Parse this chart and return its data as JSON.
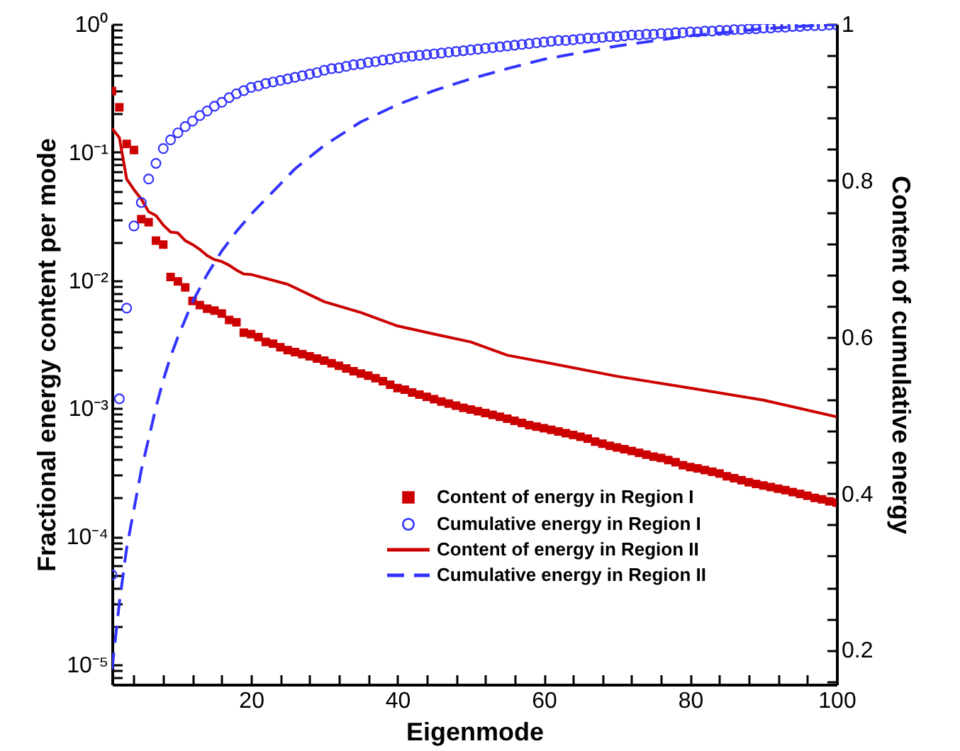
{
  "chart_data": {
    "type": "line",
    "xlabel": "Eigenmode",
    "ylabel": "Fractional energy content per mode",
    "y2label": "Content of cumulative energy",
    "log": "y",
    "legend": "bottom right",
    "xlim": [
      1,
      100
    ],
    "ylim": [
      7e-06,
      1
    ],
    "y2lim": [
      0.156,
      1
    ],
    "xticks": [
      {
        "value": 4,
        "label": null
      },
      {
        "value": 8,
        "label": null
      },
      {
        "value": 12,
        "label": null
      },
      {
        "value": 16,
        "label": null
      },
      20,
      {
        "value": 24,
        "label": null
      },
      {
        "value": 28,
        "label": null
      },
      {
        "value": 32,
        "label": null
      },
      {
        "value": 36,
        "label": null
      },
      40,
      {
        "value": 44,
        "label": null
      },
      {
        "value": 48,
        "label": null
      },
      {
        "value": 52,
        "label": null
      },
      {
        "value": 56,
        "label": null
      },
      60,
      {
        "value": 64,
        "label": null
      },
      {
        "value": 68,
        "label": null
      },
      {
        "value": 72,
        "label": null
      },
      {
        "value": 76,
        "label": null
      },
      80,
      {
        "value": 84,
        "label": null
      },
      {
        "value": 88,
        "label": null
      },
      {
        "value": 92,
        "label": null
      },
      {
        "value": 96,
        "label": null
      },
      100
    ],
    "yticks": [
      {
        "value": 1,
        "label": "10⁰"
      },
      {
        "value": 0.1,
        "label": "10⁻¹"
      },
      {
        "value": 0.01,
        "label": "10⁻²"
      },
      {
        "value": 0.001,
        "label": "10⁻³"
      },
      {
        "value": 0.0001,
        "label": "10⁻⁴"
      },
      {
        "value": 1e-05,
        "label": "10⁻⁵"
      },
      {
        "value": 8e-06,
        "label": null
      },
      {
        "value": 9e-06,
        "label": null
      },
      {
        "value": 2e-05,
        "label": null
      },
      {
        "value": 3e-05,
        "label": null
      },
      {
        "value": 4e-05,
        "label": null
      },
      {
        "value": 5e-05,
        "label": null
      },
      {
        "value": 6e-05,
        "label": null
      },
      {
        "value": 7e-05,
        "label": null
      },
      {
        "value": 8e-05,
        "label": null
      },
      {
        "value": 9e-05,
        "label": null
      },
      {
        "value": 0.0002,
        "label": null
      },
      {
        "value": 0.0003,
        "label": null
      },
      {
        "value": 0.0004,
        "label": null
      },
      {
        "value": 0.0005,
        "label": null
      },
      {
        "value": 0.0006,
        "label": null
      },
      {
        "value": 0.0007,
        "label": null
      },
      {
        "value": 0.0008,
        "label": null
      },
      {
        "value": 0.0009,
        "label": null
      },
      {
        "value": 0.002,
        "label": null
      },
      {
        "value": 0.003,
        "label": null
      },
      {
        "value": 0.004,
        "label": null
      },
      {
        "value": 0.005,
        "label": null
      },
      {
        "value": 0.006,
        "label": null
      },
      {
        "value": 0.007,
        "label": null
      },
      {
        "value": 0.008,
        "label": null
      },
      {
        "value": 0.009,
        "label": null
      },
      {
        "value": 0.02,
        "label": null
      },
      {
        "value": 0.03,
        "label": null
      },
      {
        "value": 0.04,
        "label": null
      },
      {
        "value": 0.05,
        "label": null
      },
      {
        "value": 0.06,
        "label": null
      },
      {
        "value": 0.07,
        "label": null
      },
      {
        "value": 0.08,
        "label": null
      },
      {
        "value": 0.09,
        "label": null
      },
      {
        "value": 0.2,
        "label": null
      },
      {
        "value": 0.3,
        "label": null
      },
      {
        "value": 0.4,
        "label": null
      },
      {
        "value": 0.5,
        "label": null
      },
      {
        "value": 0.6,
        "label": null
      },
      {
        "value": 0.7,
        "label": null
      },
      {
        "value": 0.8,
        "label": null
      },
      {
        "value": 0.9,
        "label": null
      }
    ],
    "y2ticks": [
      {
        "value": 0.16,
        "label": null
      },
      0.2,
      {
        "value": 0.24,
        "label": null
      },
      {
        "value": 0.28,
        "label": null
      },
      {
        "value": 0.32,
        "label": null
      },
      {
        "value": 0.36,
        "label": null
      },
      0.4,
      {
        "value": 0.44,
        "label": null
      },
      {
        "value": 0.48,
        "label": null
      },
      {
        "value": 0.52,
        "label": null
      },
      {
        "value": 0.56,
        "label": null
      },
      0.6,
      {
        "value": 0.64,
        "label": null
      },
      {
        "value": 0.68,
        "label": null
      },
      {
        "value": 0.72,
        "label": null
      },
      {
        "value": 0.76,
        "label": null
      },
      0.8,
      {
        "value": 0.84,
        "label": null
      },
      {
        "value": 0.88,
        "label": null
      },
      {
        "value": 0.92,
        "label": null
      },
      {
        "value": 0.96,
        "label": null
      },
      1
    ],
    "x": [
      1,
      2,
      3,
      4,
      5,
      6,
      7,
      8,
      9,
      10,
      11,
      12,
      13,
      14,
      15,
      16,
      17,
      18,
      19,
      20,
      21,
      22,
      23,
      24,
      25,
      26,
      27,
      28,
      29,
      30,
      31,
      32,
      33,
      34,
      35,
      36,
      37,
      38,
      39,
      40,
      41,
      42,
      43,
      44,
      45,
      46,
      47,
      48,
      49,
      50,
      51,
      52,
      53,
      54,
      55,
      56,
      57,
      58,
      59,
      60,
      61,
      62,
      63,
      64,
      65,
      66,
      67,
      68,
      69,
      70,
      71,
      72,
      73,
      74,
      75,
      76,
      77,
      78,
      79,
      80,
      81,
      82,
      83,
      84,
      85,
      86,
      87,
      88,
      89,
      90,
      91,
      92,
      93,
      94,
      95,
      96,
      97,
      98,
      99,
      100
    ],
    "series": [
      {
        "name": "Content of energy in Region I",
        "type": "scatter",
        "marker": "square",
        "color": "#cc0000",
        "values": [
          0.3,
          0.224,
          0.116,
          0.104,
          0.03,
          0.0284,
          0.0204,
          0.019,
          0.0106,
          0.0098,
          0.0088,
          0.0069,
          0.0064,
          0.006,
          0.0058,
          0.0055,
          0.0049,
          0.0047,
          0.0039,
          0.0038,
          0.0036,
          0.0033,
          0.0032,
          0.003,
          0.00285,
          0.00275,
          0.00265,
          0.00255,
          0.00245,
          0.00236,
          0.00225,
          0.00215,
          0.00205,
          0.00195,
          0.00187,
          0.0018,
          0.00172,
          0.00163,
          0.00153,
          0.00144,
          0.0014,
          0.00133,
          0.00128,
          0.00123,
          0.00118,
          0.00113,
          0.00109,
          0.00105,
          0.00101,
          0.00098,
          0.00095,
          0.00092,
          0.00089,
          0.00086,
          0.00083,
          0.0008,
          0.00077,
          0.00074,
          0.00072,
          0.0007,
          0.00068,
          0.00066,
          0.00064,
          0.00062,
          0.0006,
          0.00058,
          0.00055,
          0.00053,
          0.00051,
          0.000495,
          0.00048,
          0.000465,
          0.00045,
          0.000435,
          0.00042,
          0.00041,
          0.000395,
          0.00038,
          0.00036,
          0.000348,
          0.00034,
          0.00033,
          0.00032,
          0.00031,
          0.000295,
          0.000285,
          0.000275,
          0.000265,
          0.000257,
          0.00025,
          0.000243,
          0.000236,
          0.00023,
          0.000222,
          0.000215,
          0.000208,
          0.0002,
          0.000195,
          0.000188,
          0.000184
        ]
      },
      {
        "name": "Cumulative energy in Region I",
        "type": "scatter",
        "marker": "circle",
        "axis": "y2",
        "color": "#3333ff",
        "values": [
          0.296,
          0.521,
          0.637,
          0.742,
          0.772,
          0.802,
          0.822,
          0.841,
          0.852,
          0.861,
          0.869,
          0.876,
          0.883,
          0.889,
          0.895,
          0.9,
          0.906,
          0.911,
          0.915,
          0.919,
          0.921,
          0.924,
          0.926,
          0.928,
          0.93,
          0.932,
          0.934,
          0.936,
          0.938,
          0.941,
          0.943,
          0.944,
          0.946,
          0.948,
          0.949,
          0.951,
          0.952,
          0.954,
          0.955,
          0.957,
          0.958,
          0.959,
          0.96,
          0.961,
          0.962,
          0.963,
          0.964,
          0.965,
          0.966,
          0.967,
          0.968,
          0.969,
          0.97,
          0.971,
          0.972,
          0.973,
          0.974,
          0.975,
          0.976,
          0.977,
          0.978,
          0.979,
          0.979,
          0.98,
          0.981,
          0.982,
          0.982,
          0.983,
          0.984,
          0.984,
          0.985,
          0.986,
          0.986,
          0.987,
          0.987,
          0.988,
          0.988,
          0.989,
          0.989,
          0.99,
          0.99,
          0.991,
          0.991,
          0.992,
          0.992,
          0.993,
          0.993,
          0.994,
          0.994,
          0.995,
          0.995,
          0.996,
          0.996,
          0.997,
          0.997,
          0.998,
          0.998,
          0.998,
          0.999,
          0.999
        ]
      },
      {
        "name": "Content of energy in Region II",
        "type": "line",
        "line_style": "solid",
        "color": "#cc0000",
        "x": [
          1,
          2,
          3,
          4,
          5,
          6,
          7,
          8,
          9,
          10,
          11,
          12,
          13,
          14,
          15,
          16,
          17,
          18,
          19,
          20,
          25,
          30,
          35,
          40,
          45,
          50,
          55,
          60,
          70,
          80,
          90,
          100
        ],
        "values": [
          0.154,
          0.13,
          0.0617,
          0.051,
          0.043,
          0.0343,
          0.032,
          0.027,
          0.0238,
          0.0234,
          0.0204,
          0.019,
          0.0174,
          0.0156,
          0.0145,
          0.014,
          0.0131,
          0.012,
          0.0112,
          0.0111,
          0.0093,
          0.0068,
          0.0056,
          0.0044,
          0.0038,
          0.0033,
          0.0026,
          0.0023,
          0.00178,
          0.00144,
          0.00116,
          0.00086
        ]
      },
      {
        "name": "Cumulative energy in Region II",
        "type": "line",
        "line_style": "dashed",
        "axis": "y2",
        "color": "#3333ff",
        "x": [
          1,
          2,
          3,
          4,
          5,
          6,
          7,
          8,
          9,
          10,
          12,
          14,
          16,
          18,
          20,
          23,
          26,
          30,
          35,
          40,
          45,
          50,
          55,
          60,
          70,
          80,
          90,
          100
        ],
        "values": [
          0.175,
          0.26,
          0.33,
          0.38,
          0.43,
          0.47,
          0.51,
          0.545,
          0.575,
          0.6,
          0.645,
          0.68,
          0.71,
          0.735,
          0.757,
          0.786,
          0.815,
          0.845,
          0.875,
          0.897,
          0.915,
          0.93,
          0.943,
          0.955,
          0.972,
          0.985,
          0.994,
          1.0
        ]
      }
    ]
  }
}
